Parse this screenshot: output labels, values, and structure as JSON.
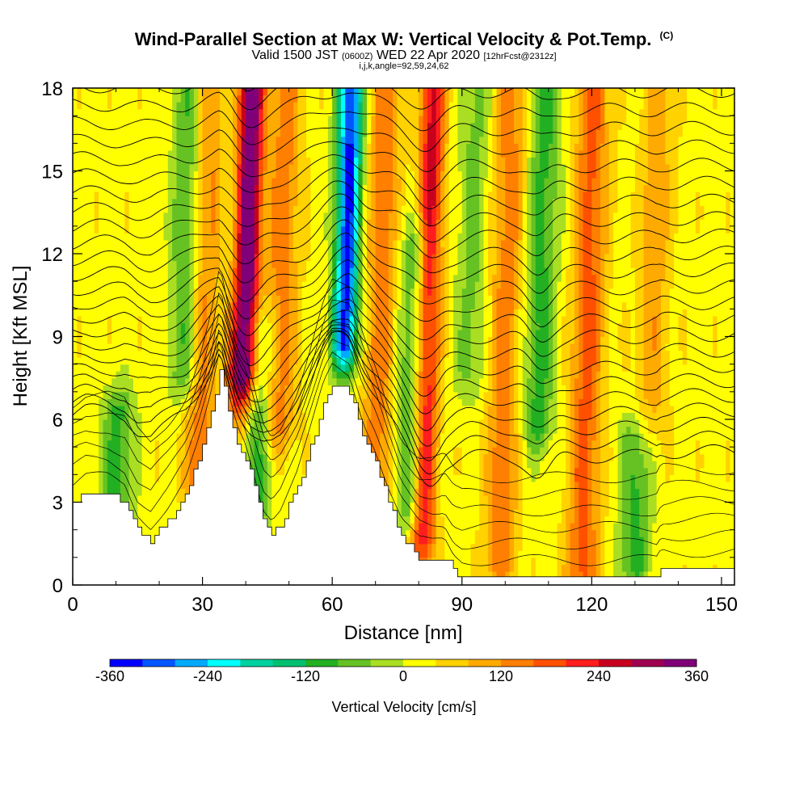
{
  "header": {
    "title": "Wind-Parallel Section at Max W: Vertical Velocity & Pot.Temp.",
    "title_mark": "(C)",
    "subtitle_a": "Valid 1500 JST",
    "subtitle_b": "(0600Z)",
    "subtitle_c": "WED 22 Apr 2020",
    "subtitle_d": "[12hrFcst@2312z]",
    "indices": "i,j,k,angle=92,59,24,62"
  },
  "chart_data": {
    "type": "heatmap",
    "xlabel": "Distance [nm]",
    "ylabel": "Height [Kft MSL]",
    "xlim": [
      0,
      153
    ],
    "ylim": [
      0,
      18
    ],
    "x_ticks": [
      0,
      30,
      60,
      90,
      120,
      150
    ],
    "y_ticks": [
      0,
      3,
      6,
      9,
      12,
      15,
      18
    ],
    "colorbar": {
      "label": "Vertical Velocity [cm/s]",
      "min": -360,
      "max": 360,
      "tick_labels": [
        -360,
        -240,
        -120,
        0,
        120,
        240,
        360
      ],
      "colors": [
        "#0000ff",
        "#0055ff",
        "#00aaff",
        "#00ffff",
        "#00d2a0",
        "#00c070",
        "#22b022",
        "#66c222",
        "#aade22",
        "#ffff00",
        "#ffd200",
        "#ffaa00",
        "#ff7f00",
        "#ff5000",
        "#ff1e1e",
        "#c8001e",
        "#a00050",
        "#800078"
      ]
    },
    "terrain_profile": [
      [
        0,
        3.0
      ],
      [
        3,
        3.3
      ],
      [
        8,
        3.3
      ],
      [
        12,
        3.0
      ],
      [
        15,
        2.0
      ],
      [
        18,
        1.6
      ],
      [
        22,
        2.3
      ],
      [
        26,
        3.2
      ],
      [
        29,
        4.5
      ],
      [
        32,
        6.2
      ],
      [
        34,
        7.8
      ],
      [
        36,
        6.3
      ],
      [
        38,
        5.2
      ],
      [
        40,
        4.6
      ],
      [
        42,
        3.5
      ],
      [
        44,
        2.3
      ],
      [
        46,
        1.9
      ],
      [
        48,
        2.2
      ],
      [
        52,
        3.5
      ],
      [
        55,
        5.0
      ],
      [
        58,
        6.6
      ],
      [
        60,
        7.3
      ],
      [
        64,
        7.0
      ],
      [
        67,
        5.5
      ],
      [
        70,
        4.4
      ],
      [
        73,
        3.0
      ],
      [
        76,
        1.8
      ],
      [
        78,
        1.4
      ],
      [
        80,
        1.0
      ],
      [
        83,
        0.9
      ],
      [
        86,
        1.0
      ],
      [
        88,
        0.5
      ],
      [
        90,
        0.3
      ],
      [
        135,
        0.3
      ],
      [
        136,
        0.6
      ],
      [
        145,
        0.6
      ],
      [
        150,
        0.6
      ],
      [
        153,
        0.6
      ]
    ],
    "updraft_max": [
      {
        "x": 40,
        "top": 18,
        "bottom": 8,
        "w": 360
      },
      {
        "x": 82,
        "top": 18,
        "bottom": 2,
        "w": 240
      },
      {
        "x": 30,
        "top": 18,
        "bottom": 4,
        "w": 120
      },
      {
        "x": 48,
        "top": 18,
        "bottom": 6,
        "w": 120
      },
      {
        "x": 71,
        "top": 18,
        "bottom": 4,
        "w": 120
      },
      {
        "x": 100,
        "top": 18,
        "bottom": 1,
        "w": 120
      },
      {
        "x": 119,
        "top": 18,
        "bottom": 0.5,
        "w": 150
      },
      {
        "x": 134,
        "top": 18,
        "bottom": 6,
        "w": 80
      }
    ],
    "downdraft_min": [
      {
        "x": 63,
        "top": 18,
        "bottom": 9,
        "w": -360
      },
      {
        "x": 43,
        "top": 9,
        "bottom": 3,
        "w": -120
      },
      {
        "x": 79,
        "top": 12,
        "bottom": 3,
        "w": -120
      },
      {
        "x": 26,
        "top": 18,
        "bottom": 8,
        "w": -120
      },
      {
        "x": 108,
        "top": 18,
        "bottom": 6,
        "w": -120
      },
      {
        "x": 11,
        "top": 6,
        "bottom": 2,
        "w": -120
      },
      {
        "x": 131,
        "top": 5,
        "bottom": 1,
        "w": -120
      },
      {
        "x": 92,
        "top": 18,
        "bottom": 8,
        "w": -80
      }
    ],
    "theta_contours": "potential temperature isentropes, ~0.6 Kft spacing, wave-like dips over x=40, 82, 108"
  }
}
